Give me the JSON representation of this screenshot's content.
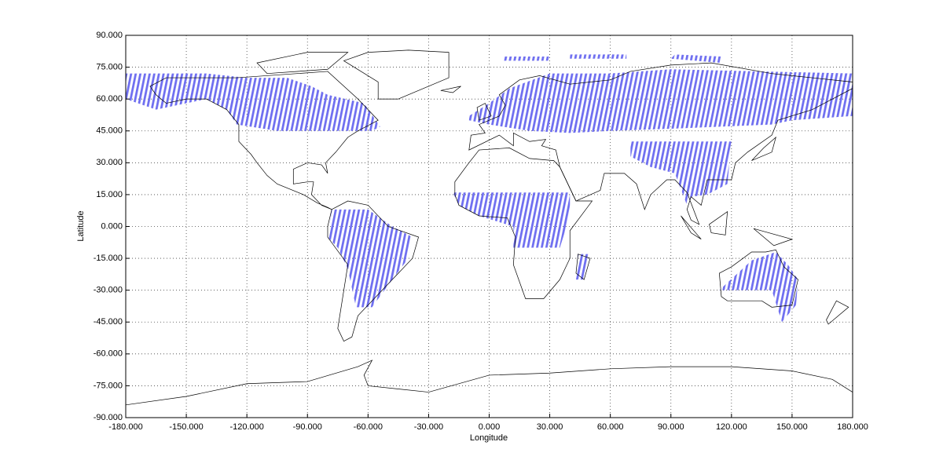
{
  "chart_data": {
    "type": "map",
    "xlabel": "Longitude",
    "ylabel": "Latitude",
    "xlim": [
      -180,
      180
    ],
    "ylim": [
      -90,
      90
    ],
    "xticks": [
      {
        "value": -180,
        "label": "-180.000"
      },
      {
        "value": -150,
        "label": "-150.000"
      },
      {
        "value": -120,
        "label": "-120.000"
      },
      {
        "value": -90,
        "label": "-90.000"
      },
      {
        "value": -60,
        "label": "-60.000"
      },
      {
        "value": -30,
        "label": "-30.000"
      },
      {
        "value": 0,
        "label": "0.000"
      },
      {
        "value": 30,
        "label": "30.000"
      },
      {
        "value": 60,
        "label": "60.000"
      },
      {
        "value": 90,
        "label": "90.000"
      },
      {
        "value": 120,
        "label": "120.000"
      },
      {
        "value": 150,
        "label": "150.000"
      },
      {
        "value": 180,
        "label": "180.000"
      }
    ],
    "yticks": [
      {
        "value": 90,
        "label": "90.000"
      },
      {
        "value": 75,
        "label": "75.000"
      },
      {
        "value": 60,
        "label": "60.000"
      },
      {
        "value": 45,
        "label": "45.000"
      },
      {
        "value": 30,
        "label": "30.000"
      },
      {
        "value": 15,
        "label": "15.000"
      },
      {
        "value": 0,
        "label": "0.000"
      },
      {
        "value": -15,
        "label": "-15.000"
      },
      {
        "value": -30,
        "label": "-30.000"
      },
      {
        "value": -45,
        "label": "-45.000"
      },
      {
        "value": -60,
        "label": "-60.000"
      },
      {
        "value": -75,
        "label": "-75.000"
      },
      {
        "value": -90,
        "label": "-90.000"
      }
    ],
    "grid": true
  }
}
